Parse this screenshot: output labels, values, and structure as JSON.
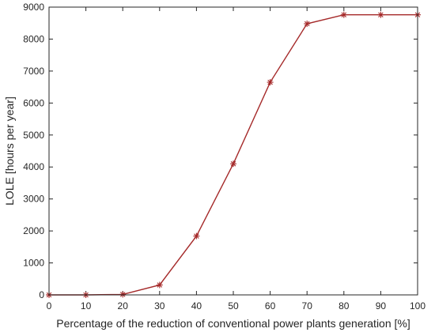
{
  "chart_data": {
    "type": "line",
    "title": "",
    "xlabel": "Percentage of the reduction of conventional power plants generation [%]",
    "ylabel": "LOLE [hours per year]",
    "xlim": [
      0,
      100
    ],
    "ylim": [
      0,
      9000
    ],
    "xticks": [
      0,
      10,
      20,
      30,
      40,
      50,
      60,
      70,
      80,
      90,
      100
    ],
    "yticks": [
      0,
      1000,
      2000,
      3000,
      4000,
      5000,
      6000,
      7000,
      8000,
      9000
    ],
    "xtick_labels": [
      "0",
      "10",
      "20",
      "30",
      "40",
      "50",
      "60",
      "70",
      "80",
      "90",
      "100"
    ],
    "ytick_labels": [
      "0",
      "1000",
      "2000",
      "3000",
      "4000",
      "5000",
      "6000",
      "7000",
      "8000",
      "9000"
    ],
    "grid": false,
    "legend": "none",
    "series": [
      {
        "x": [
          0,
          10,
          20,
          30,
          40,
          50,
          60,
          70,
          80,
          90,
          100
        ],
        "values": [
          0,
          0,
          15,
          310,
          1840,
          4100,
          6650,
          8480,
          8760,
          8760,
          8760
        ],
        "line_color": "#a52a2a",
        "marker": "asterisk",
        "marker_color": "#a52a2a"
      }
    ]
  }
}
